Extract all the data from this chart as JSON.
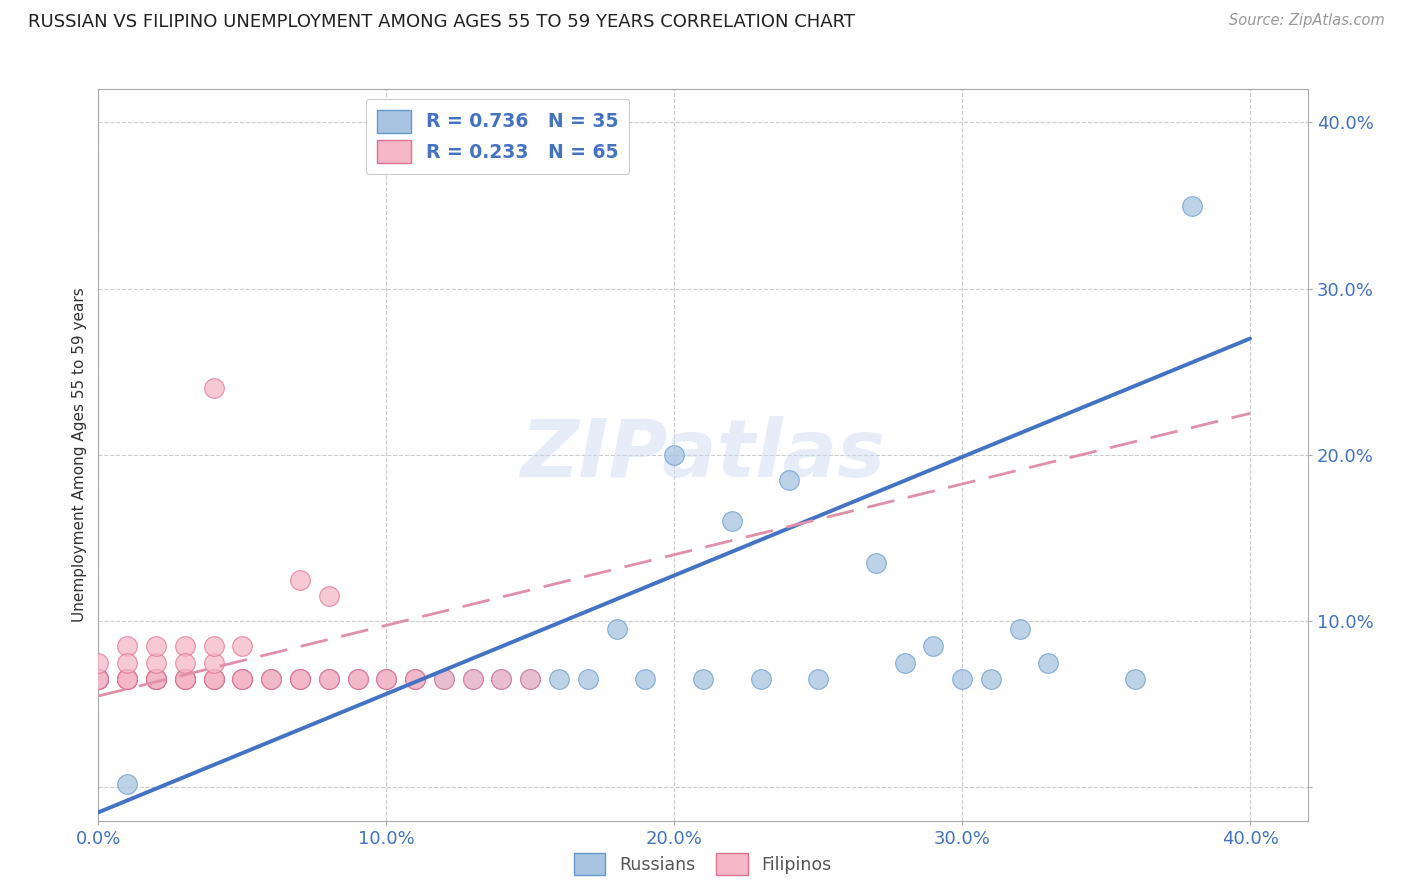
{
  "title": "RUSSIAN VS FILIPINO UNEMPLOYMENT AMONG AGES 55 TO 59 YEARS CORRELATION CHART",
  "source": "Source: ZipAtlas.com",
  "ylabel": "Unemployment Among Ages 55 to 59 years",
  "russian_color": "#a8c4e0",
  "russian_edge_color": "#6699cc",
  "filipino_color": "#f4b8c8",
  "filipino_edge_color": "#e07090",
  "russian_line_color": "#4472c4",
  "filipino_line_color": "#e090a8",
  "russian_R": 0.736,
  "russian_N": 35,
  "filipino_R": 0.233,
  "filipino_N": 65,
  "tick_label_color": "#4472c4",
  "watermark": "ZIPatlas",
  "xlim": [
    0.0,
    0.42
  ],
  "ylim": [
    -0.02,
    0.42
  ],
  "xtick_positions": [
    0.0,
    0.1,
    0.2,
    0.3,
    0.4
  ],
  "ytick_positions": [
    0.0,
    0.1,
    0.2,
    0.3,
    0.4
  ],
  "xticklabels": [
    "0.0%",
    "10.0%",
    "20.0%",
    "30.0%",
    "40.0%"
  ],
  "yticklabels": [
    "",
    "10.0%",
    "20.0%",
    "30.0%",
    "40.0%"
  ],
  "rus_line_x0": 0.0,
  "rus_line_y0": -0.015,
  "rus_line_x1": 0.4,
  "rus_line_y1": 0.27,
  "fil_line_x0": 0.0,
  "fil_line_y0": 0.055,
  "fil_line_x1": 0.4,
  "fil_line_y1": 0.225,
  "russian_x": [
    0.0,
    0.01,
    0.02,
    0.03,
    0.04,
    0.05,
    0.06,
    0.07,
    0.08,
    0.09,
    0.1,
    0.11,
    0.12,
    0.13,
    0.14,
    0.15,
    0.16,
    0.17,
    0.18,
    0.19,
    0.2,
    0.21,
    0.22,
    0.23,
    0.24,
    0.25,
    0.27,
    0.28,
    0.29,
    0.3,
    0.31,
    0.32,
    0.33,
    0.36,
    0.38
  ],
  "russian_y": [
    0.065,
    0.002,
    0.065,
    0.065,
    0.065,
    0.065,
    0.065,
    0.065,
    0.065,
    0.065,
    0.065,
    0.065,
    0.065,
    0.065,
    0.065,
    0.065,
    0.065,
    0.065,
    0.095,
    0.065,
    0.2,
    0.065,
    0.16,
    0.065,
    0.185,
    0.065,
    0.135,
    0.075,
    0.085,
    0.065,
    0.065,
    0.095,
    0.075,
    0.065,
    0.35
  ],
  "filipino_x": [
    0.0,
    0.0,
    0.0,
    0.0,
    0.0,
    0.0,
    0.0,
    0.0,
    0.0,
    0.0,
    0.01,
    0.01,
    0.01,
    0.01,
    0.01,
    0.01,
    0.01,
    0.02,
    0.02,
    0.02,
    0.02,
    0.02,
    0.02,
    0.03,
    0.03,
    0.03,
    0.03,
    0.03,
    0.04,
    0.04,
    0.04,
    0.04,
    0.05,
    0.05,
    0.05,
    0.06,
    0.06,
    0.07,
    0.07,
    0.07,
    0.08,
    0.08,
    0.09,
    0.09,
    0.1,
    0.1,
    0.11,
    0.11,
    0.12,
    0.13,
    0.14,
    0.15,
    0.04,
    0.07,
    0.08,
    0.0,
    0.01,
    0.02,
    0.03,
    0.04,
    0.05,
    0.02,
    0.03,
    0.04,
    0.01
  ],
  "filipino_y": [
    0.065,
    0.065,
    0.065,
    0.065,
    0.065,
    0.065,
    0.065,
    0.065,
    0.065,
    0.065,
    0.065,
    0.065,
    0.065,
    0.065,
    0.065,
    0.065,
    0.065,
    0.065,
    0.065,
    0.065,
    0.065,
    0.065,
    0.065,
    0.065,
    0.065,
    0.065,
    0.065,
    0.065,
    0.065,
    0.065,
    0.065,
    0.065,
    0.065,
    0.065,
    0.065,
    0.065,
    0.065,
    0.065,
    0.065,
    0.065,
    0.065,
    0.065,
    0.065,
    0.065,
    0.065,
    0.065,
    0.065,
    0.065,
    0.065,
    0.065,
    0.065,
    0.065,
    0.24,
    0.125,
    0.115,
    0.075,
    0.085,
    0.075,
    0.085,
    0.075,
    0.085,
    0.085,
    0.075,
    0.085,
    0.075
  ]
}
